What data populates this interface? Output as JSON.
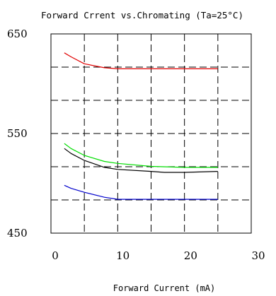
{
  "chart_data": {
    "type": "line",
    "title": "Forward Crrent vs.Chromating (Ta=25°C)",
    "xlabel": "Forward Current (mA)",
    "ylabel": "",
    "xlim": [
      0,
      30
    ],
    "ylim": [
      450,
      650
    ],
    "x_ticks": [
      "0",
      "10",
      "20",
      "30"
    ],
    "y_ticks": [
      "450",
      "550",
      "650"
    ],
    "grid": true,
    "series": [
      {
        "color": "#e00000",
        "points": [
          [
            2,
            631
          ],
          [
            3,
            627
          ],
          [
            5,
            620
          ],
          [
            8,
            616
          ],
          [
            10,
            615
          ],
          [
            15,
            615
          ],
          [
            20,
            615
          ],
          [
            25,
            615
          ]
        ]
      },
      {
        "color": "#00dd00",
        "points": [
          [
            2,
            540
          ],
          [
            3,
            535
          ],
          [
            5,
            528
          ],
          [
            8,
            522
          ],
          [
            10,
            520
          ],
          [
            15,
            517
          ],
          [
            20,
            516
          ],
          [
            25,
            516
          ]
        ]
      },
      {
        "color": "#000000",
        "points": [
          [
            2,
            535
          ],
          [
            3,
            530
          ],
          [
            5,
            523
          ],
          [
            8,
            516
          ],
          [
            10,
            514
          ],
          [
            15,
            512
          ],
          [
            17,
            511
          ],
          [
            20,
            511
          ],
          [
            25,
            512
          ]
        ]
      },
      {
        "color": "#0000cc",
        "points": [
          [
            2,
            498
          ],
          [
            3,
            495
          ],
          [
            5,
            491
          ],
          [
            8,
            486
          ],
          [
            10,
            484
          ],
          [
            15,
            484
          ],
          [
            20,
            484
          ],
          [
            25,
            484
          ]
        ]
      }
    ]
  }
}
